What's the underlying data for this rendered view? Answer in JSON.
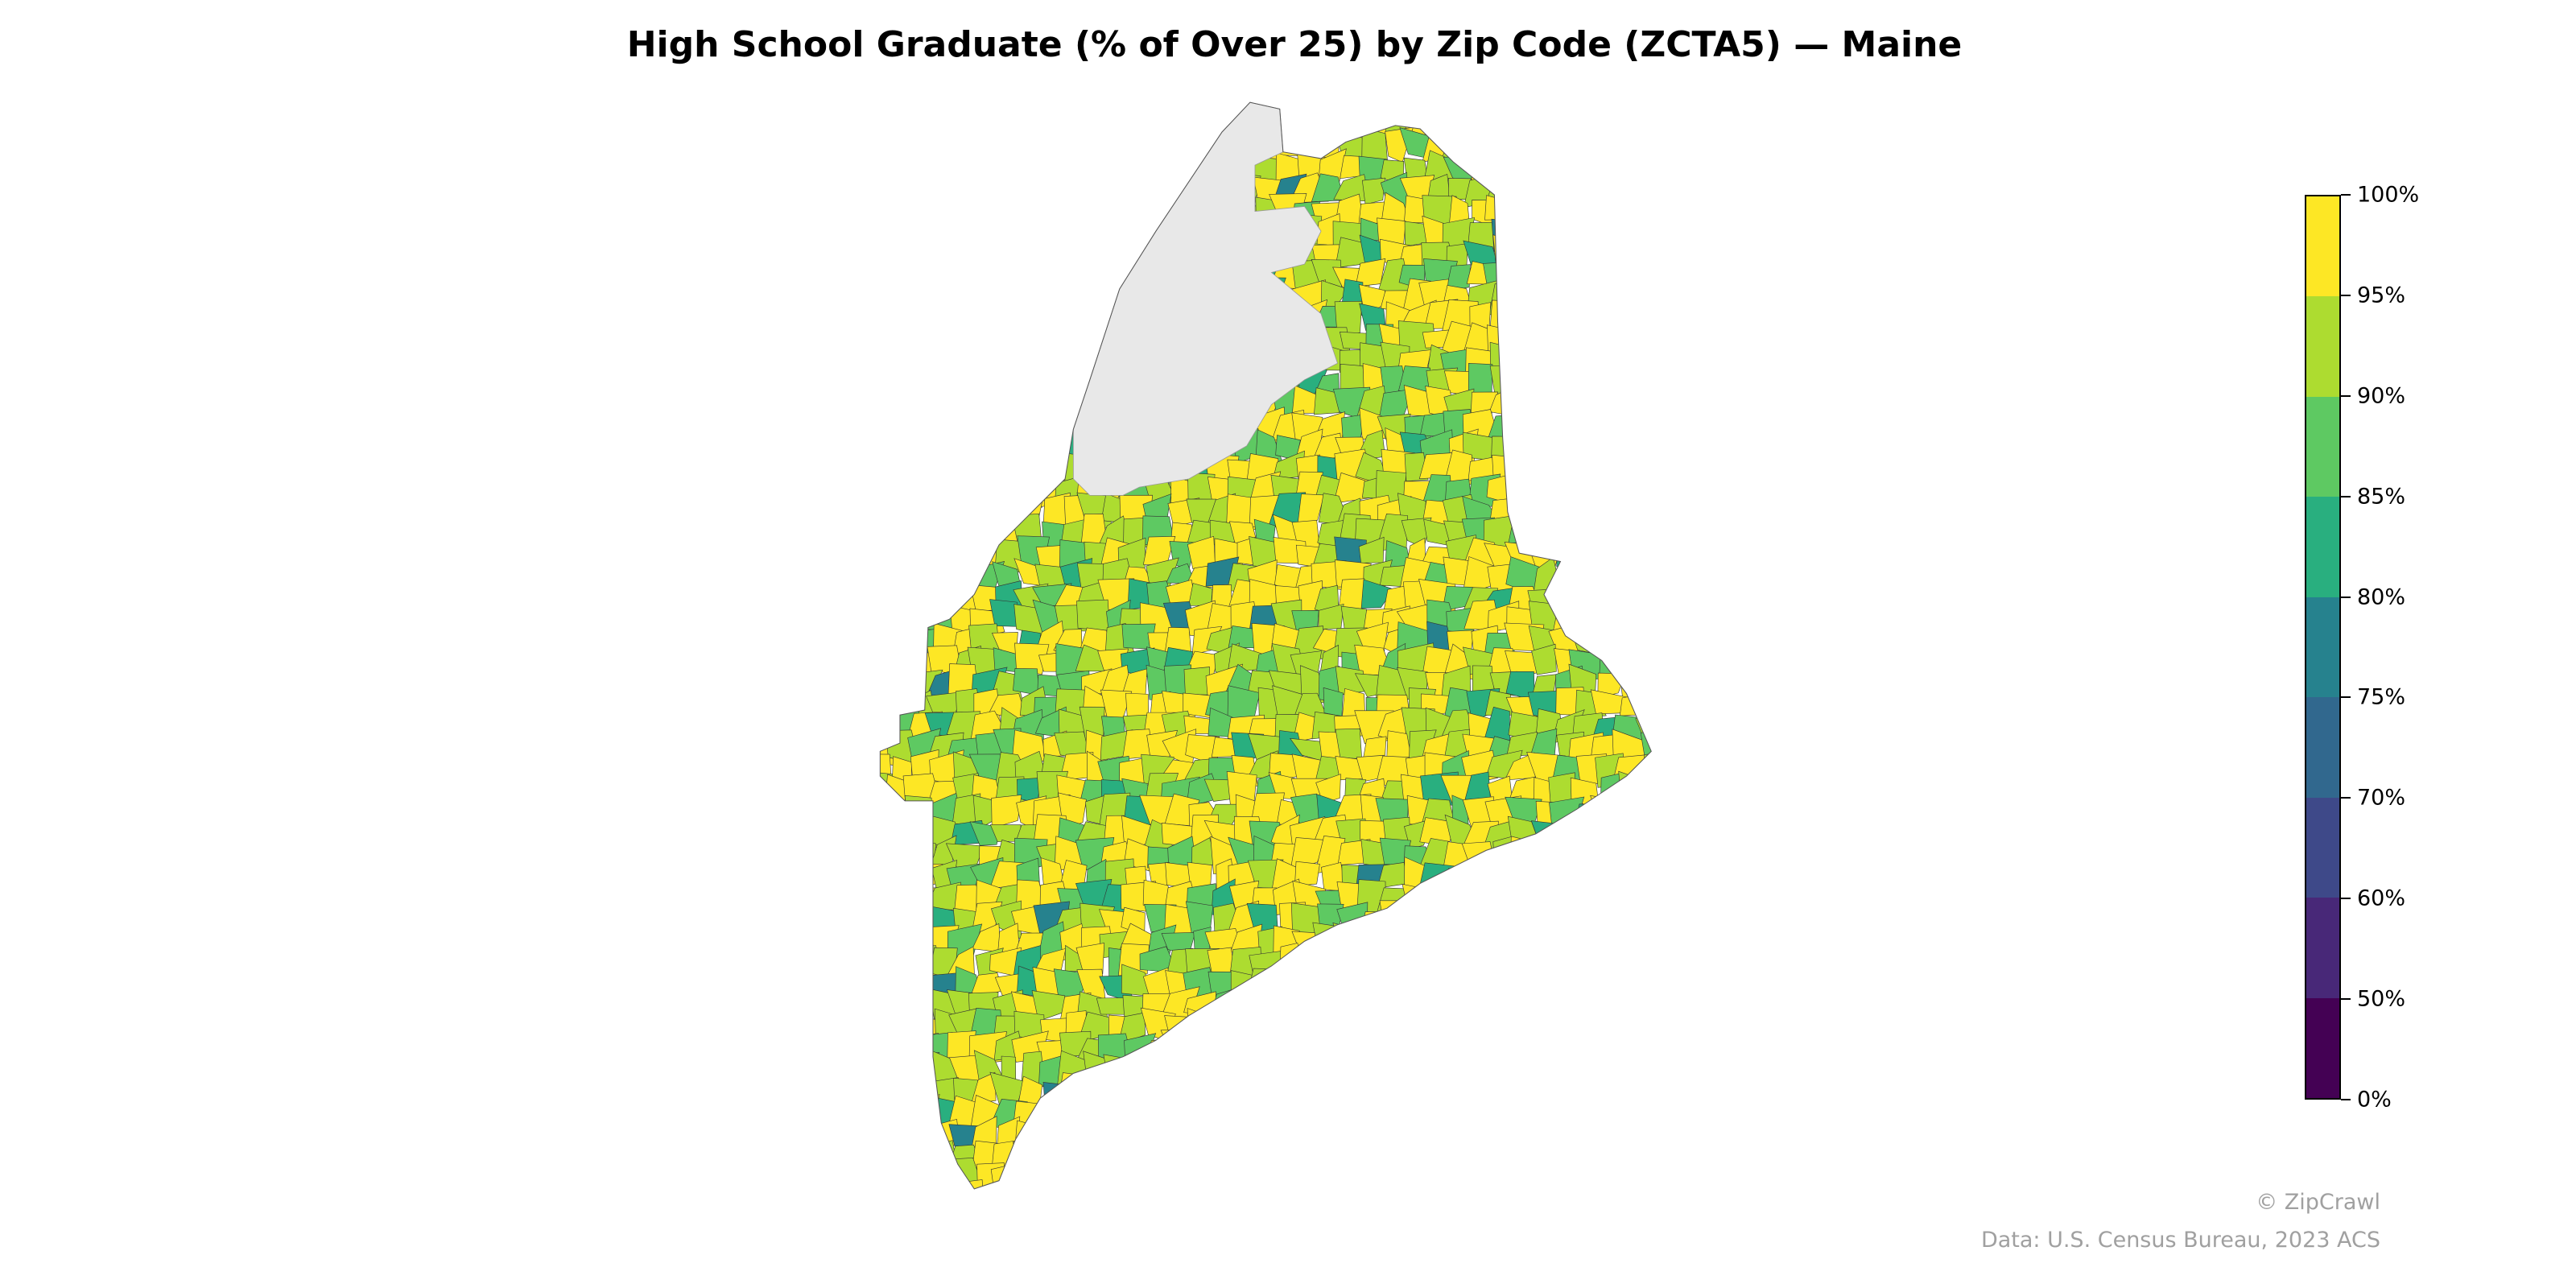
{
  "chart_data": {
    "type": "choropleth",
    "title": "High School Graduate (% of Over 25) by Zip Code (ZCTA5) — Maine",
    "region": "Maine",
    "geography": "Zip Code (ZCTA5)",
    "colorbar": {
      "ticks": [
        "0%",
        "50%",
        "60%",
        "70%",
        "75%",
        "80%",
        "85%",
        "90%",
        "95%",
        "100%"
      ],
      "bins": [
        {
          "range": "0%–50%",
          "color": "#440154"
        },
        {
          "range": "50%–60%",
          "color": "#482878"
        },
        {
          "range": "60%–70%",
          "color": "#3e4989"
        },
        {
          "range": "70%–75%",
          "color": "#31688e"
        },
        {
          "range": "75%–80%",
          "color": "#26828e"
        },
        {
          "range": "80%–85%",
          "color": "#29af7f"
        },
        {
          "range": "85%–90%",
          "color": "#5ec962"
        },
        {
          "range": "90%–95%",
          "color": "#addc30"
        },
        {
          "range": "95%–100%",
          "color": "#fde725"
        }
      ]
    },
    "no_data_color": "#e8e8e8"
  },
  "footer": {
    "credit": "© ZipCrawl",
    "source": "Data: U.S. Census Bureau, 2023 ACS"
  }
}
